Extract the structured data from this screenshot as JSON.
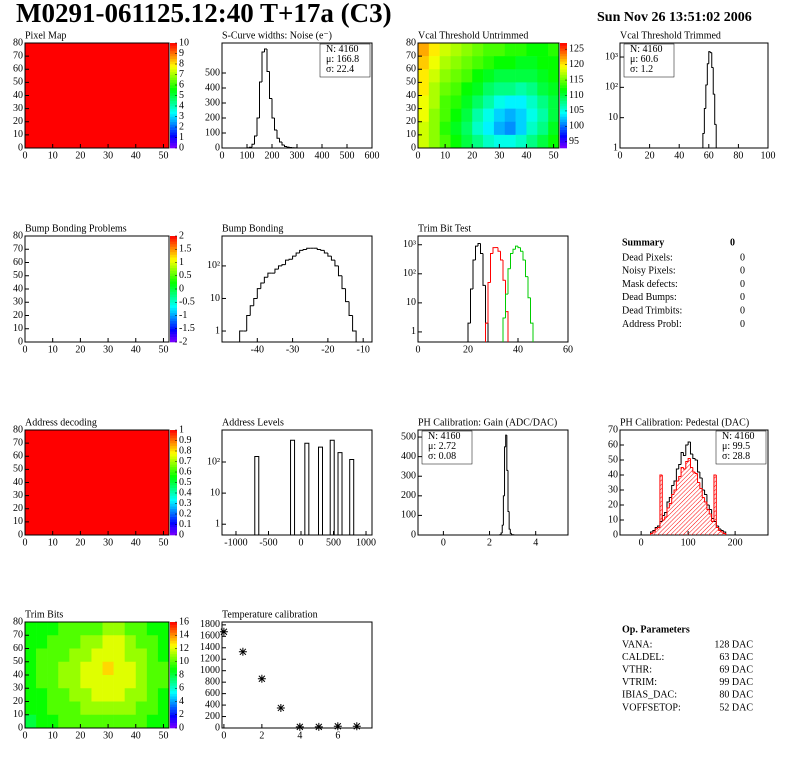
{
  "header": {
    "title": "M0291-061125.12:40 T+17a (C3)",
    "date": "Sun Nov 26 13:51:02 2006"
  },
  "summary": {
    "title": "Summary",
    "value": "0",
    "rows": [
      [
        "Dead Pixels:",
        "0"
      ],
      [
        "Noisy Pixels:",
        "0"
      ],
      [
        "Mask defects:",
        "0"
      ],
      [
        "Dead Bumps:",
        "0"
      ],
      [
        "Dead Trimbits:",
        "0"
      ],
      [
        "Address Probl:",
        "0"
      ]
    ]
  },
  "op_parameters": {
    "title": "Op. Parameters",
    "rows": [
      [
        "VANA:",
        "128 DAC"
      ],
      [
        "CALDEL:",
        "63 DAC"
      ],
      [
        "VTHR:",
        "69 DAC"
      ],
      [
        "VTRIM:",
        "99 DAC"
      ],
      [
        "IBIAS_DAC:",
        "80 DAC"
      ],
      [
        "VOFFSETOP:",
        "52 DAC"
      ]
    ]
  },
  "chart_data": [
    {
      "type": "heatmap",
      "title": "Pixel Map",
      "xlim": [
        0,
        52
      ],
      "ylim": [
        0,
        80
      ],
      "xticks": [
        0,
        10,
        20,
        30,
        40,
        50
      ],
      "yticks": [
        0,
        10,
        20,
        30,
        40,
        50,
        60,
        70,
        80
      ],
      "zlim": [
        0,
        10
      ],
      "zticks": [
        0,
        1,
        2,
        3,
        4,
        5,
        6,
        7,
        8,
        9,
        10
      ],
      "z": [
        [
          10
        ]
      ]
    },
    {
      "type": "histogram",
      "title": "S-Curve widths: Noise (e⁻)",
      "xlim": [
        0,
        600
      ],
      "ylim": [
        0,
        700
      ],
      "xticks": [
        0,
        100,
        200,
        300,
        400,
        500,
        600
      ],
      "yticks": [
        0,
        100,
        200,
        300,
        400,
        500
      ],
      "stats": [
        {
          "text": "N: 4160",
          "color": "#000000"
        },
        {
          "text": "μ: 166.8",
          "color": "#000000"
        },
        {
          "text": "σ: 22.4",
          "color": "#000000"
        }
      ],
      "stats_corner": "right",
      "series": [
        {
          "color": "#000000",
          "bins": [
            100,
            110,
            120,
            130,
            140,
            150,
            160,
            170,
            180,
            190,
            200,
            210,
            220,
            230,
            240,
            250,
            260,
            270,
            280,
            290,
            300
          ],
          "counts": [
            2,
            5,
            25,
            80,
            200,
            440,
            640,
            660,
            510,
            330,
            200,
            120,
            65,
            40,
            20,
            10,
            6,
            3,
            2,
            1
          ]
        }
      ]
    },
    {
      "type": "heatmap",
      "title": "Vcal Threshold Untrimmed",
      "xlim": [
        0,
        52
      ],
      "ylim": [
        0,
        80
      ],
      "xticks": [
        0,
        10,
        20,
        30,
        40,
        50
      ],
      "yticks": [
        0,
        10,
        20,
        30,
        40,
        50,
        60,
        70,
        80
      ],
      "zlim": [
        93,
        127
      ],
      "zticks": [
        95,
        100,
        105,
        110,
        115,
        120,
        125
      ],
      "z": [
        [
          122,
          120,
          118,
          117,
          116,
          115,
          114,
          114,
          113,
          113,
          112,
          112,
          113
        ],
        [
          121,
          119,
          117,
          116,
          115,
          114,
          113,
          112,
          112,
          111,
          111,
          112,
          112
        ],
        [
          120,
          118,
          116,
          115,
          114,
          112,
          111,
          110,
          110,
          110,
          110,
          111,
          112
        ],
        [
          120,
          117,
          115,
          114,
          112,
          111,
          109,
          108,
          108,
          107,
          108,
          110,
          111
        ],
        [
          119,
          117,
          114,
          113,
          111,
          109,
          107,
          105,
          104,
          104,
          106,
          108,
          110
        ],
        [
          119,
          116,
          114,
          112,
          110,
          107,
          105,
          103,
          102,
          103,
          105,
          107,
          110
        ],
        [
          118,
          116,
          113,
          111,
          109,
          106,
          104,
          102,
          101,
          103,
          106,
          108,
          111
        ],
        [
          118,
          116,
          114,
          112,
          110,
          108,
          106,
          105,
          105,
          106,
          108,
          110,
          112
        ]
      ]
    },
    {
      "type": "histogram",
      "title": "Vcal Threshold Trimmed",
      "log_y": true,
      "xlim": [
        0,
        100
      ],
      "ylim": [
        1,
        2900
      ],
      "xticks": [
        0,
        20,
        40,
        60,
        80,
        100
      ],
      "yticks": [
        1,
        10,
        {
          "value": 100,
          "label": "10²"
        },
        {
          "value": 1000,
          "label": "10³"
        }
      ],
      "stats": [
        {
          "text": "N: 4160",
          "color": "#000000"
        },
        {
          "text": "μ: 60.6",
          "color": "#000000"
        },
        {
          "text": "σ:  1.2",
          "color": "#000000"
        }
      ],
      "stats_corner": "left",
      "series": [
        {
          "color": "#000000",
          "bins": [
            56,
            57,
            58,
            59,
            60,
            61,
            62,
            63,
            64,
            65,
            66
          ],
          "counts": [
            3,
            20,
            120,
            600,
            1500,
            1400,
            450,
            60,
            6,
            1
          ]
        }
      ]
    },
    {
      "type": "heatmap",
      "title": "Bump Bonding Problems",
      "xlim": [
        0,
        52
      ],
      "ylim": [
        0,
        80
      ],
      "xticks": [
        0,
        10,
        20,
        30,
        40,
        50
      ],
      "yticks": [
        0,
        10,
        20,
        30,
        40,
        50,
        60,
        70,
        80
      ],
      "zlim": [
        -2,
        2
      ],
      "zticks": [
        -2,
        -1.5,
        -1,
        -0.5,
        0,
        0.5,
        1,
        1.5,
        2
      ],
      "z": []
    },
    {
      "type": "histogram",
      "title": "Bump Bonding",
      "log_y": true,
      "xlim": [
        -50,
        -7.5
      ],
      "ylim": [
        0.46,
        830
      ],
      "xticks": [
        -40,
        -30,
        -20,
        -10
      ],
      "yticks": [
        1,
        10,
        {
          "value": 100,
          "label": "10²"
        }
      ],
      "series": [
        {
          "color": "#000000",
          "bins": [
            -45,
            -44,
            -43,
            -42,
            -41,
            -40,
            -39,
            -38,
            -37,
            -36,
            -35,
            -34,
            -33,
            -32,
            -31,
            -30,
            -29,
            -28,
            -27,
            -26,
            -25,
            -24,
            -23,
            -22,
            -21,
            -20,
            -19,
            -18,
            -17,
            -16,
            -15,
            -14,
            -13,
            -12
          ],
          "counts": [
            1,
            1,
            3,
            6,
            10,
            20,
            30,
            45,
            60,
            60,
            80,
            100,
            110,
            150,
            160,
            200,
            250,
            300,
            320,
            350,
            350,
            350,
            320,
            300,
            250,
            200,
            150,
            100,
            50,
            20,
            8,
            3,
            1
          ]
        }
      ]
    },
    {
      "type": "histogram",
      "title": "Trim Bit Test",
      "log_y": true,
      "xlim": [
        0,
        60
      ],
      "ylim": [
        0.45,
        2000
      ],
      "xticks": [
        0,
        20,
        40,
        60
      ],
      "yticks": [
        1,
        10,
        {
          "value": 100,
          "label": "10²"
        },
        {
          "value": 1000,
          "label": "10³"
        }
      ],
      "series": [
        {
          "color": "#000000",
          "bins": [
            20,
            21,
            22,
            23,
            24,
            25,
            26,
            27,
            28
          ],
          "counts": [
            2,
            30,
            300,
            900,
            1100,
            500,
            40,
            2
          ]
        },
        {
          "color": "#ff0000",
          "bins": [
            27,
            28,
            29,
            30,
            31,
            32,
            33,
            34,
            35,
            36
          ],
          "counts": [
            2,
            50,
            500,
            800,
            800,
            600,
            300,
            60,
            5
          ]
        },
        {
          "color": "#00cc00",
          "bins": [
            34,
            35,
            36,
            37,
            38,
            39,
            40,
            41,
            42,
            43,
            44,
            45,
            46
          ],
          "counts": [
            3,
            20,
            150,
            500,
            700,
            900,
            800,
            600,
            300,
            80,
            15,
            2
          ]
        }
      ]
    },
    {
      "type": "heatmap",
      "title": "Address decoding",
      "xlim": [
        0,
        52
      ],
      "ylim": [
        0,
        80
      ],
      "xticks": [
        0,
        10,
        20,
        30,
        40,
        50
      ],
      "yticks": [
        0,
        10,
        20,
        30,
        40,
        50,
        60,
        70,
        80
      ],
      "zlim": [
        0,
        1
      ],
      "zticks": [
        0,
        0.1,
        0.2,
        0.3,
        0.4,
        0.5,
        0.6,
        0.7,
        0.8,
        0.9,
        1
      ],
      "z": [
        [
          1
        ]
      ]
    },
    {
      "type": "spike",
      "title": "Address Levels",
      "log_y": true,
      "xlim": [
        -1215,
        1092
      ],
      "ylim": [
        0.45,
        1070
      ],
      "xticks": [
        -1000,
        -500,
        0,
        500,
        1000
      ],
      "yticks": [
        1,
        10,
        {
          "value": 100,
          "label": "10²"
        }
      ],
      "x": [
        -680,
        -130,
        90,
        300,
        480,
        600,
        780
      ],
      "values": [
        150,
        500,
        400,
        300,
        500,
        200,
        120
      ],
      "color": "#000000"
    },
    {
      "type": "histogram",
      "title": "PH Calibration: Gain (ADC/DAC)",
      "xlim": [
        -1.1,
        5.4
      ],
      "ylim": [
        0,
        536
      ],
      "xticks": [
        0,
        2,
        4
      ],
      "yticks": [
        0,
        100,
        200,
        300,
        400,
        500
      ],
      "stats": [
        {
          "text": "N: 4160",
          "color": "#000000"
        },
        {
          "text": "μ: 2.72",
          "color": "#000000"
        },
        {
          "text": "σ: 0.08",
          "color": "#000000"
        }
      ],
      "stats_corner": "left",
      "series": [
        {
          "color": "#000000",
          "bins": [
            2.45,
            2.5,
            2.55,
            2.6,
            2.65,
            2.7,
            2.75,
            2.8,
            2.85,
            2.9,
            2.95,
            3.0,
            3.05
          ],
          "counts": [
            2,
            10,
            50,
            200,
            450,
            510,
            330,
            120,
            30,
            8,
            2,
            1
          ]
        }
      ]
    },
    {
      "type": "histogram",
      "title": "PH Calibration: Pedestal (DAC)",
      "xlim": [
        -45,
        270
      ],
      "ylim": [
        0,
        70
      ],
      "xticks": [
        0,
        100,
        200
      ],
      "yticks": [
        0,
        10,
        20,
        30,
        40,
        50,
        60,
        70
      ],
      "stats": [
        {
          "text": "N: 4160",
          "color": "#000000"
        },
        {
          "text": "μ: 99.5",
          "color": "#ff0000"
        },
        {
          "text": "σ: 28.8",
          "color": "#ff0000"
        }
      ],
      "stats_corner": "right",
      "series": [
        {
          "color": "#000000",
          "bins": [
            20,
            25,
            30,
            35,
            40,
            45,
            50,
            55,
            60,
            65,
            70,
            75,
            80,
            85,
            90,
            95,
            100,
            105,
            110,
            115,
            120,
            125,
            130,
            135,
            140,
            145,
            150,
            155,
            160,
            165,
            170,
            175,
            180
          ],
          "counts": [
            2,
            3,
            5,
            6,
            9,
            13,
            15,
            22,
            25,
            33,
            36,
            44,
            47,
            55,
            53,
            60,
            62,
            54,
            51,
            50,
            42,
            38,
            30,
            27,
            20,
            17,
            11,
            9,
            6,
            4,
            3,
            2
          ]
        },
        {
          "color": "#ff0000",
          "fill": true,
          "bins": [
            20,
            25,
            30,
            35,
            40,
            45,
            50,
            55,
            60,
            65,
            70,
            75,
            80,
            85,
            90,
            95,
            100,
            105,
            110,
            115,
            120,
            125,
            130,
            135,
            140,
            145,
            150,
            155,
            160,
            165,
            170,
            175,
            180
          ],
          "counts": [
            1,
            2,
            4,
            5,
            40,
            10,
            12,
            18,
            21,
            27,
            30,
            36,
            39,
            45,
            44,
            49,
            51,
            45,
            42,
            41,
            35,
            31,
            25,
            22,
            17,
            14,
            9,
            40,
            5,
            3,
            2,
            1
          ]
        }
      ]
    },
    {
      "type": "heatmap",
      "title": "Trim Bits",
      "xlim": [
        0,
        52
      ],
      "ylim": [
        0,
        80
      ],
      "xticks": [
        0,
        10,
        20,
        30,
        40,
        50
      ],
      "yticks": [
        0,
        10,
        20,
        30,
        40,
        50,
        60,
        70,
        80
      ],
      "zlim": [
        0,
        16
      ],
      "zticks": [
        0,
        2,
        4,
        6,
        8,
        10,
        12,
        14,
        16
      ],
      "z": [
        [
          9,
          9,
          9,
          10,
          10,
          10,
          10,
          11,
          11,
          10,
          10,
          9,
          9
        ],
        [
          9,
          9,
          10,
          10,
          10,
          11,
          11,
          12,
          12,
          11,
          10,
          10,
          9
        ],
        [
          9,
          10,
          10,
          10,
          11,
          11,
          12,
          12,
          12,
          11,
          11,
          10,
          9
        ],
        [
          9,
          10,
          10,
          11,
          11,
          12,
          12,
          13,
          12,
          12,
          11,
          10,
          10
        ],
        [
          9,
          10,
          10,
          11,
          11,
          12,
          12,
          12,
          12,
          12,
          11,
          10,
          10
        ],
        [
          9,
          9,
          10,
          10,
          11,
          11,
          12,
          12,
          12,
          11,
          11,
          10,
          9
        ],
        [
          9,
          9,
          10,
          10,
          10,
          11,
          11,
          11,
          11,
          11,
          10,
          10,
          9
        ],
        [
          8,
          9,
          9,
          10,
          10,
          10,
          10,
          10,
          10,
          10,
          10,
          9,
          9
        ]
      ]
    },
    {
      "type": "scatter",
      "title": "Temperature calibration",
      "xlim": [
        -0.1,
        7.8
      ],
      "ylim": [
        0,
        1850
      ],
      "xticks": [
        0,
        2,
        4,
        6
      ],
      "yticks": [
        0,
        200,
        400,
        600,
        800,
        1000,
        1200,
        1400,
        1600,
        1800
      ],
      "x": [
        0,
        1,
        2,
        3,
        4,
        5,
        6,
        7
      ],
      "values": [
        1680,
        1330,
        860,
        350,
        20,
        20,
        30,
        30
      ],
      "color": "#000000"
    }
  ]
}
